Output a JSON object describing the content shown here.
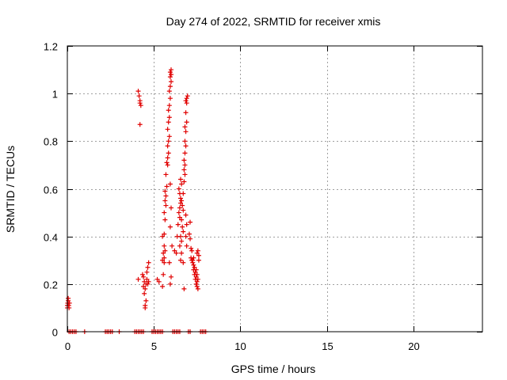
{
  "chart_data": {
    "type": "scatter",
    "title": "Day 274 of 2022, SRMTID for receiver xmis",
    "xlabel": "GPS time / hours",
    "ylabel": "SRMTID / TECUs",
    "xlim": [
      0,
      24
    ],
    "ylim": [
      0,
      1.2
    ],
    "xticks": [
      0,
      5,
      10,
      15,
      20
    ],
    "xtick_labels": [
      "0",
      "5",
      "10",
      "15",
      "20"
    ],
    "yticks": [
      0,
      0.2,
      0.4,
      0.6,
      0.8,
      1.0,
      1.2
    ],
    "ytick_labels": [
      "0",
      "0.2",
      "0.4",
      "0.6",
      "0.8",
      "1",
      "1.2"
    ],
    "grid": true,
    "marker": "+",
    "marker_color": "#e00000",
    "series": [
      {
        "name": "SRMTID",
        "points": [
          [
            0.0,
            0.1
          ],
          [
            0.0,
            0.11
          ],
          [
            0.02,
            0.12
          ],
          [
            0.05,
            0.13
          ],
          [
            0.05,
            0.14
          ],
          [
            0.08,
            0.11
          ],
          [
            0.1,
            0.1
          ],
          [
            0.12,
            0.12
          ],
          [
            4.1,
            1.01
          ],
          [
            4.15,
            0.99
          ],
          [
            4.2,
            0.97
          ],
          [
            4.2,
            0.96
          ],
          [
            4.25,
            0.95
          ],
          [
            4.2,
            0.87
          ],
          [
            4.1,
            0.22
          ],
          [
            4.35,
            0.24
          ],
          [
            4.4,
            0.23
          ],
          [
            4.45,
            0.21
          ],
          [
            4.4,
            0.19
          ],
          [
            4.5,
            0.18
          ],
          [
            4.45,
            0.16
          ],
          [
            4.55,
            0.2
          ],
          [
            4.6,
            0.22
          ],
          [
            4.6,
            0.25
          ],
          [
            4.65,
            0.27
          ],
          [
            4.7,
            0.29
          ],
          [
            4.55,
            0.13
          ],
          [
            4.5,
            0.11
          ],
          [
            4.5,
            0.1
          ],
          [
            4.65,
            0.2
          ],
          [
            4.7,
            0.21
          ],
          [
            5.2,
            0.22
          ],
          [
            5.3,
            0.21
          ],
          [
            5.5,
            0.19
          ],
          [
            5.55,
            0.24
          ],
          [
            5.6,
            0.29
          ],
          [
            5.5,
            0.3
          ],
          [
            5.6,
            0.31
          ],
          [
            5.55,
            0.33
          ],
          [
            5.65,
            0.34
          ],
          [
            5.6,
            0.36
          ],
          [
            5.5,
            0.4
          ],
          [
            5.6,
            0.41
          ],
          [
            5.65,
            0.47
          ],
          [
            5.6,
            0.5
          ],
          [
            5.7,
            0.53
          ],
          [
            5.65,
            0.55
          ],
          [
            5.7,
            0.57
          ],
          [
            5.65,
            0.59
          ],
          [
            5.75,
            0.61
          ],
          [
            5.7,
            0.66
          ],
          [
            5.8,
            0.7
          ],
          [
            5.75,
            0.71
          ],
          [
            5.8,
            0.73
          ],
          [
            5.85,
            0.75
          ],
          [
            5.8,
            0.78
          ],
          [
            5.85,
            0.8
          ],
          [
            5.9,
            0.82
          ],
          [
            5.8,
            0.85
          ],
          [
            5.85,
            0.88
          ],
          [
            5.9,
            0.9
          ],
          [
            5.85,
            0.93
          ],
          [
            5.9,
            0.95
          ],
          [
            5.95,
            0.98
          ],
          [
            5.9,
            1.01
          ],
          [
            5.95,
            1.03
          ],
          [
            6.0,
            1.05
          ],
          [
            5.95,
            1.07
          ],
          [
            6.0,
            1.08
          ],
          [
            5.95,
            1.09
          ],
          [
            6.0,
            1.1
          ],
          [
            5.95,
            0.62
          ],
          [
            6.0,
            0.52
          ],
          [
            5.95,
            0.44
          ],
          [
            5.9,
            0.29
          ],
          [
            6.0,
            0.23
          ],
          [
            5.95,
            0.2
          ],
          [
            6.05,
            0.36
          ],
          [
            6.2,
            0.34
          ],
          [
            6.3,
            0.33
          ],
          [
            6.35,
            0.4
          ],
          [
            6.4,
            0.45
          ],
          [
            6.5,
            0.48
          ],
          [
            6.45,
            0.5
          ],
          [
            6.5,
            0.52
          ],
          [
            6.55,
            0.54
          ],
          [
            6.6,
            0.55
          ],
          [
            6.55,
            0.56
          ],
          [
            6.5,
            0.58
          ],
          [
            6.45,
            0.6
          ],
          [
            6.6,
            0.62
          ],
          [
            6.55,
            0.64
          ],
          [
            6.65,
            0.53
          ],
          [
            6.7,
            0.51
          ],
          [
            6.6,
            0.47
          ],
          [
            6.65,
            0.44
          ],
          [
            6.7,
            0.42
          ],
          [
            6.55,
            0.4
          ],
          [
            6.6,
            0.38
          ],
          [
            6.5,
            0.36
          ],
          [
            6.6,
            0.33
          ],
          [
            6.55,
            0.3
          ],
          [
            6.7,
            0.29
          ],
          [
            6.75,
            0.18
          ],
          [
            6.7,
            0.58
          ],
          [
            6.75,
            0.63
          ],
          [
            6.8,
            0.66
          ],
          [
            6.75,
            0.68
          ],
          [
            6.8,
            0.7
          ],
          [
            6.75,
            0.72
          ],
          [
            6.8,
            0.75
          ],
          [
            6.85,
            0.78
          ],
          [
            6.8,
            0.8
          ],
          [
            6.85,
            0.84
          ],
          [
            6.8,
            0.86
          ],
          [
            6.9,
            0.88
          ],
          [
            6.85,
            0.92
          ],
          [
            6.9,
            0.96
          ],
          [
            6.85,
            0.97
          ],
          [
            6.9,
            0.98
          ],
          [
            6.95,
            0.99
          ],
          [
            6.85,
            0.49
          ],
          [
            6.9,
            0.45
          ],
          [
            6.85,
            0.4
          ],
          [
            6.9,
            0.36
          ],
          [
            7.1,
            0.46
          ],
          [
            7.05,
            0.41
          ],
          [
            7.1,
            0.39
          ],
          [
            7.15,
            0.35
          ],
          [
            7.2,
            0.34
          ],
          [
            7.15,
            0.31
          ],
          [
            7.2,
            0.3
          ],
          [
            7.25,
            0.29
          ],
          [
            7.3,
            0.31
          ],
          [
            7.25,
            0.3
          ],
          [
            7.3,
            0.28
          ],
          [
            7.35,
            0.27
          ],
          [
            7.3,
            0.26
          ],
          [
            7.4,
            0.25
          ],
          [
            7.35,
            0.24
          ],
          [
            7.45,
            0.23
          ],
          [
            7.4,
            0.22
          ],
          [
            7.5,
            0.21
          ],
          [
            7.45,
            0.2
          ],
          [
            7.5,
            0.19
          ],
          [
            7.55,
            0.18
          ],
          [
            7.5,
            0.33
          ],
          [
            7.55,
            0.34
          ],
          [
            7.6,
            0.32
          ],
          [
            7.6,
            0.3
          ],
          [
            7.45,
            0.26
          ],
          [
            7.55,
            0.22
          ],
          [
            7.5,
            0.24
          ],
          [
            0.1,
            0.0
          ],
          [
            0.2,
            0.0
          ],
          [
            0.3,
            0.0
          ],
          [
            0.4,
            0.0
          ],
          [
            0.5,
            0.0
          ],
          [
            1.0,
            0.0
          ],
          [
            2.2,
            0.0
          ],
          [
            2.3,
            0.0
          ],
          [
            2.4,
            0.0
          ],
          [
            2.5,
            0.0
          ],
          [
            2.6,
            0.0
          ],
          [
            3.0,
            0.0
          ],
          [
            3.9,
            0.0
          ],
          [
            4.0,
            0.0
          ],
          [
            4.1,
            0.0
          ],
          [
            4.2,
            0.0
          ],
          [
            4.3,
            0.0
          ],
          [
            4.4,
            0.0
          ],
          [
            4.9,
            0.0
          ],
          [
            5.0,
            0.0
          ],
          [
            5.1,
            0.0
          ],
          [
            5.2,
            0.0
          ],
          [
            5.3,
            0.0
          ],
          [
            5.4,
            0.0
          ],
          [
            5.5,
            0.0
          ],
          [
            6.1,
            0.0
          ],
          [
            6.2,
            0.0
          ],
          [
            6.3,
            0.0
          ],
          [
            6.4,
            0.0
          ],
          [
            6.5,
            0.0
          ],
          [
            7.0,
            0.0
          ],
          [
            7.1,
            0.0
          ],
          [
            7.7,
            0.0
          ],
          [
            7.8,
            0.0
          ],
          [
            7.9,
            0.0
          ],
          [
            8.0,
            0.0
          ]
        ]
      }
    ]
  }
}
